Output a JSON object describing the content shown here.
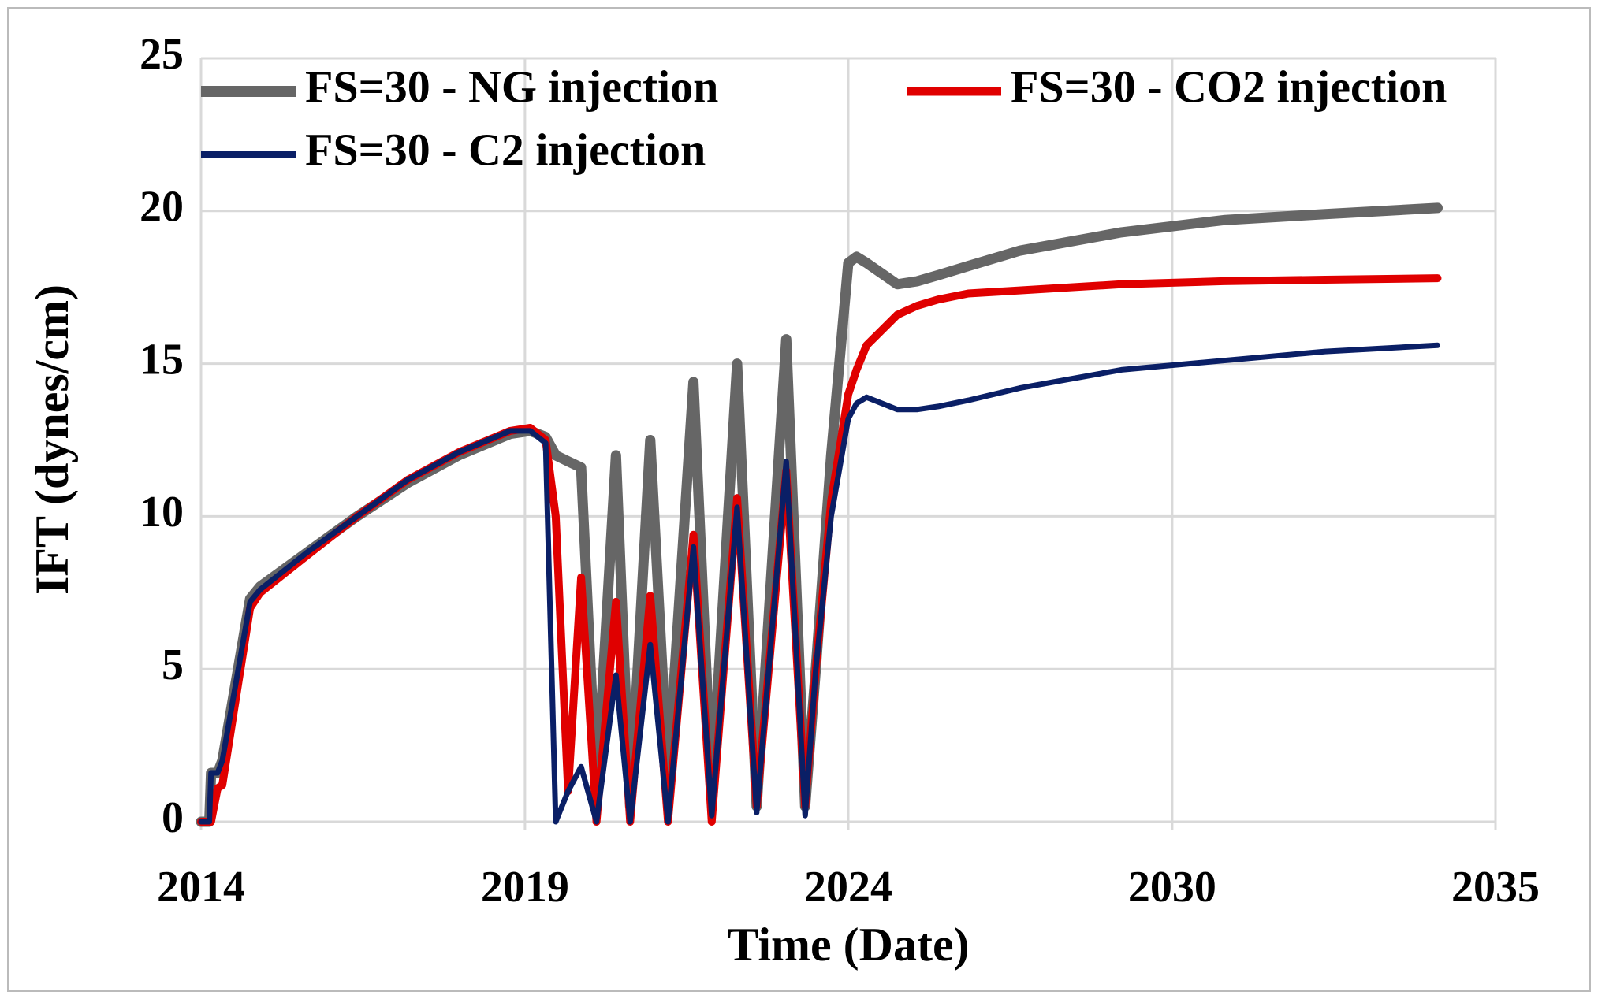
{
  "chart_data": {
    "type": "line",
    "x_label": "Time (Date)",
    "y_label": "IFT (dynes/cm)",
    "x": [
      2014.0,
      2014.14,
      2014.17,
      2014.28,
      2014.36,
      2014.83,
      2015.0,
      2015.78,
      2016.64,
      2017.5,
      2018.36,
      2019.23,
      2019.57,
      2019.83,
      2020.0,
      2020.21,
      2020.43,
      2020.69,
      2021.02,
      2021.26,
      2021.6,
      2021.9,
      2022.33,
      2022.64,
      2023.07,
      2023.4,
      2023.9,
      2024.22,
      2024.4,
      2024.66,
      2024.95,
      2025.09,
      2025.26,
      2025.78,
      2026.12,
      2026.47,
      2026.98,
      2027.85,
      2029.57,
      2031.3,
      2033.02,
      2034.92
    ],
    "series": [
      {
        "name": "FS=30 - NG injection",
        "color": "#666666",
        "width": 13,
        "values": [
          0,
          0,
          1.6,
          1.6,
          2,
          7.3,
          7.7,
          8.8,
          10.0,
          11.1,
          12.0,
          12.7,
          12.8,
          12.6,
          12.0,
          11.8,
          11.6,
          1,
          12,
          0.5,
          12.5,
          1.5,
          14.4,
          1,
          15,
          0.5,
          15.8,
          0.5,
          5,
          12,
          18.3,
          18.5,
          18.3,
          17.6,
          17.7,
          17.9,
          18.2,
          18.7,
          19.3,
          19.7,
          19.9,
          20.1
        ]
      },
      {
        "name": "FS=30 - CO2 injection",
        "color": "#e00000",
        "width": 10,
        "values": [
          0,
          0,
          0,
          1.1,
          1.2,
          7.0,
          7.5,
          8.7,
          10.0,
          11.2,
          12.1,
          12.8,
          12.9,
          12.5,
          10,
          1,
          8,
          0,
          7.2,
          0,
          7.4,
          0,
          9.4,
          0,
          10.6,
          0.5,
          11.5,
          0.5,
          5,
          10.5,
          14,
          14.8,
          15.6,
          16.6,
          16.9,
          17.1,
          17.3,
          17.4,
          17.6,
          17.7,
          17.75,
          17.8
        ]
      },
      {
        "name": "FS=30 - C2 injection",
        "color": "#0a1f66",
        "width": 7,
        "values": [
          0,
          0,
          1.6,
          1.6,
          2,
          7.2,
          7.6,
          8.8,
          10.0,
          11.2,
          12.1,
          12.8,
          12.8,
          12.4,
          0,
          1.0,
          1.8,
          0,
          4.8,
          0,
          5.8,
          0,
          9,
          0.2,
          10.3,
          0.3,
          11.8,
          0.2,
          5,
          10,
          13.2,
          13.7,
          13.9,
          13.5,
          13.5,
          13.6,
          13.8,
          14.2,
          14.8,
          15.1,
          15.4,
          15.6
        ]
      }
    ],
    "xlim": [
      2014.0,
      2035.9
    ],
    "xticks": [
      {
        "value": 2014.0,
        "label": "2014"
      },
      {
        "value": 2019.48,
        "label": "2019"
      },
      {
        "value": 2024.95,
        "label": "2024"
      },
      {
        "value": 2030.43,
        "label": "2030"
      },
      {
        "value": 2035.9,
        "label": "2035"
      }
    ],
    "ylim": [
      0,
      25
    ],
    "yticks": [
      0,
      5,
      10,
      15,
      20,
      25
    ],
    "grid": true
  }
}
